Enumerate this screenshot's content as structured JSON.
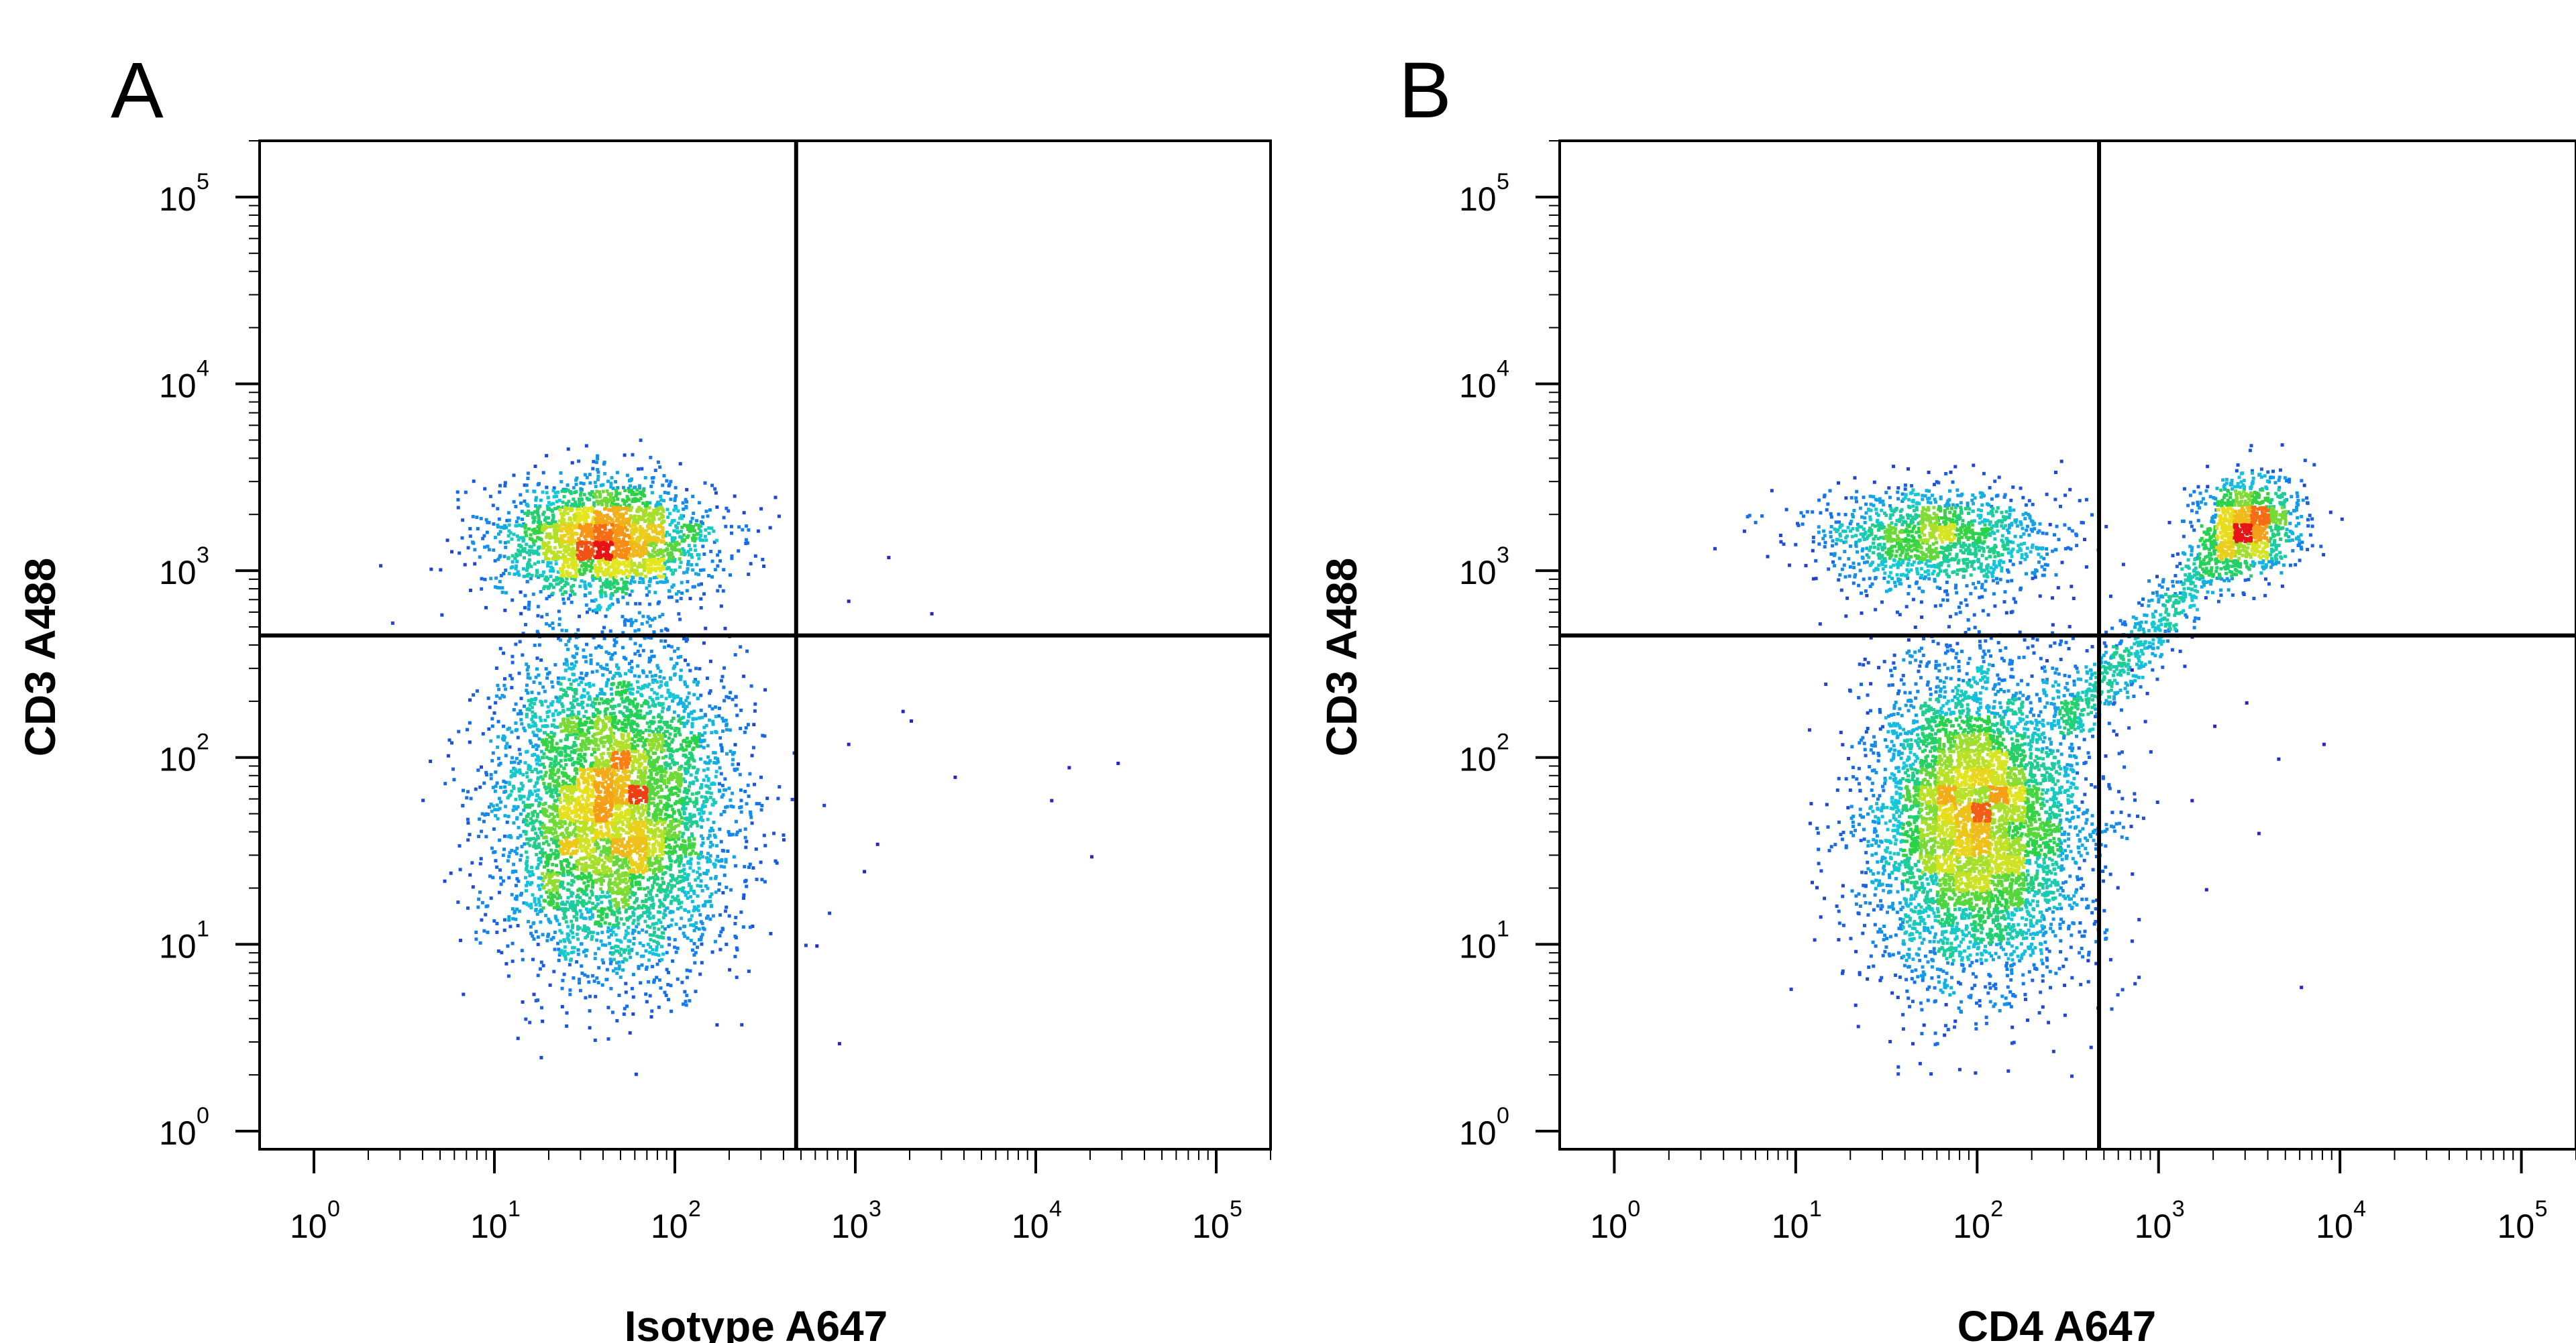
{
  "chart_data": [
    {
      "type": "scatter",
      "panel": "A",
      "xlabel": "Isotype A647",
      "ylabel": "CD3 A488",
      "x_scale": "log",
      "y_scale": "log",
      "xlim": [
        0.5,
        200000
      ],
      "ylim": [
        0.8,
        200000
      ],
      "x_ticks": [
        {
          "base": "10",
          "exp": "0",
          "value": 1
        },
        {
          "base": "10",
          "exp": "1",
          "value": 10
        },
        {
          "base": "10",
          "exp": "2",
          "value": 100
        },
        {
          "base": "10",
          "exp": "3",
          "value": 1000
        },
        {
          "base": "10",
          "exp": "4",
          "value": 10000
        },
        {
          "base": "10",
          "exp": "5",
          "value": 100000
        }
      ],
      "y_ticks": [
        {
          "base": "10",
          "exp": "0",
          "value": 1
        },
        {
          "base": "10",
          "exp": "1",
          "value": 10
        },
        {
          "base": "10",
          "exp": "2",
          "value": 100
        },
        {
          "base": "10",
          "exp": "3",
          "value": 1000
        },
        {
          "base": "10",
          "exp": "4",
          "value": 10000
        },
        {
          "base": "10",
          "exp": "5",
          "value": 100000
        }
      ],
      "gate": {
        "x": 470,
        "y": 450
      },
      "populations": [
        {
          "name": "CD3+ (upper left)",
          "cx": 40,
          "cy": 1500,
          "sx": 0.3,
          "sy": 0.16,
          "n": 2200
        },
        {
          "name": "CD3- (lower left)",
          "cx": 45,
          "cy": 55,
          "sx": 0.32,
          "sy": 0.42,
          "n": 5200
        }
      ],
      "sparse_points": [
        [
          1800,
          180
        ],
        [
          3500,
          80
        ],
        [
          1300,
          35
        ],
        [
          15000,
          90
        ],
        [
          20000,
          30
        ],
        [
          28000,
          95
        ],
        [
          900,
          700
        ],
        [
          2600,
          600
        ],
        [
          800,
          3
        ],
        [
          600,
          10
        ],
        [
          2000,
          160
        ],
        [
          1100,
          25
        ],
        [
          12000,
          60
        ],
        [
          900,
          120
        ],
        [
          1500,
          1200
        ]
      ],
      "grid": false,
      "legend": "none"
    },
    {
      "type": "scatter",
      "panel": "B",
      "xlabel": "CD4 A647",
      "ylabel": "CD3 A488",
      "x_scale": "log",
      "y_scale": "log",
      "xlim": [
        0.5,
        200000
      ],
      "ylim": [
        0.8,
        200000
      ],
      "x_ticks": [
        {
          "base": "10",
          "exp": "0",
          "value": 1
        },
        {
          "base": "10",
          "exp": "1",
          "value": 10
        },
        {
          "base": "10",
          "exp": "2",
          "value": 100
        },
        {
          "base": "10",
          "exp": "3",
          "value": 1000
        },
        {
          "base": "10",
          "exp": "4",
          "value": 10000
        },
        {
          "base": "10",
          "exp": "5",
          "value": 100000
        }
      ],
      "y_ticks": [
        {
          "base": "10",
          "exp": "0",
          "value": 1
        },
        {
          "base": "10",
          "exp": "1",
          "value": 10
        },
        {
          "base": "10",
          "exp": "2",
          "value": 100
        },
        {
          "base": "10",
          "exp": "3",
          "value": 1000
        },
        {
          "base": "10",
          "exp": "4",
          "value": 10000
        },
        {
          "base": "10",
          "exp": "5",
          "value": 100000
        }
      ],
      "gate": {
        "x": 470,
        "y": 450
      },
      "populations": [
        {
          "name": "CD3+ CD4- (upper left)",
          "cx": 55,
          "cy": 1500,
          "sx": 0.34,
          "sy": 0.14,
          "n": 1300
        },
        {
          "name": "CD3+ CD4+ (upper right)",
          "cx": 3000,
          "cy": 1800,
          "sx": 0.14,
          "sy": 0.14,
          "n": 900
        },
        {
          "name": "CD3- CD4- (lower left)",
          "cx": 95,
          "cy": 45,
          "sx": 0.3,
          "sy": 0.42,
          "n": 5200
        }
      ],
      "sparse_points": [
        [
          2000,
          150
        ],
        [
          3500,
          40
        ],
        [
          4500,
          100
        ],
        [
          1800,
          20
        ],
        [
          8000,
          120
        ],
        [
          3000,
          200
        ],
        [
          6000,
          6
        ],
        [
          1500,
          60
        ],
        [
          700,
          300
        ]
      ],
      "grid": false,
      "legend": "none"
    }
  ]
}
